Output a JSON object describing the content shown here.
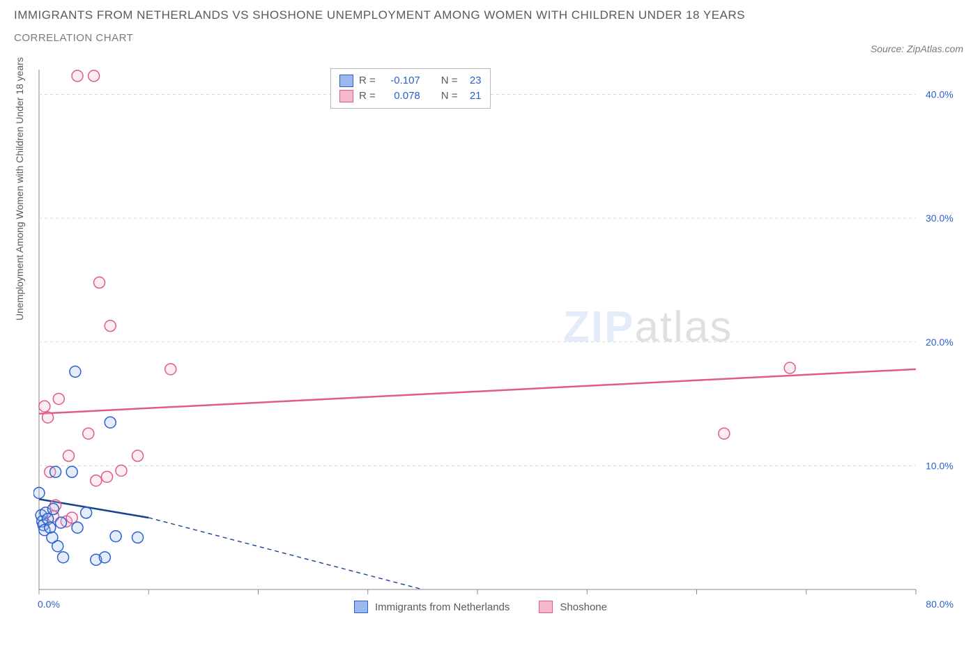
{
  "title": {
    "main": "IMMIGRANTS FROM NETHERLANDS VS SHOSHONE UNEMPLOYMENT AMONG WOMEN WITH CHILDREN UNDER 18 YEARS",
    "sub": "CORRELATION CHART",
    "main_color": "#5a5a5a",
    "sub_color": "#7a7a7a",
    "main_fontsize": 17,
    "sub_fontsize": 15
  },
  "source": {
    "prefix": "Source: ",
    "name": "ZipAtlas.com",
    "color": "#7a7a7a",
    "fontsize": 14
  },
  "watermark": {
    "zip": "ZIP",
    "atlas": "atlas",
    "zip_color": "#8aa9e6",
    "atlas_color": "#777777",
    "fontsize": 62,
    "opacity": 0.22
  },
  "chart": {
    "type": "scatter",
    "background_color": "#ffffff",
    "plot_border_color": "#8a8a8a",
    "grid_color": "#d9d9d9",
    "grid_dash": "4 4",
    "xlim": [
      0,
      80
    ],
    "ylim": [
      0,
      42
    ],
    "x_ticks": [
      0,
      10,
      20,
      30,
      40,
      50,
      60,
      70,
      80
    ],
    "x_tick_labels": [
      "0.0%",
      "",
      "",
      "",
      "",
      "",
      "",
      "",
      "80.0%"
    ],
    "y_ticks": [
      10,
      20,
      30,
      40
    ],
    "y_tick_labels": [
      "10.0%",
      "20.0%",
      "30.0%",
      "40.0%"
    ],
    "y_axis_label": "Unemployment Among Women with Children Under 18 years",
    "axis_label_color": "#5a5a5a",
    "tick_label_color": "#2a5fd0",
    "tick_label_fontsize": 14,
    "marker_radius": 8,
    "marker_stroke_width": 1.5,
    "marker_fill_opacity": 0.25,
    "trend_line_width": 2.5,
    "trend_dash_segment": "6 5"
  },
  "series": [
    {
      "name": "Immigrants from Netherlands",
      "color_stroke": "#2a5fd0",
      "color_fill": "#9db8ec",
      "trend_color": "#17418f",
      "trend": {
        "x1": 0,
        "y1": 7.3,
        "x2_solid": 10,
        "y2_solid": 5.8,
        "x2_dash": 35,
        "y2_dash": 0.0
      },
      "r": "-0.107",
      "n": "23",
      "points": [
        [
          0.0,
          7.8
        ],
        [
          0.2,
          6.0
        ],
        [
          0.3,
          5.5
        ],
        [
          0.4,
          5.2
        ],
        [
          0.5,
          4.8
        ],
        [
          0.6,
          6.2
        ],
        [
          0.8,
          5.7
        ],
        [
          1.0,
          5.0
        ],
        [
          1.2,
          4.2
        ],
        [
          1.3,
          6.5
        ],
        [
          1.5,
          9.5
        ],
        [
          1.7,
          3.5
        ],
        [
          2.0,
          5.4
        ],
        [
          2.2,
          2.6
        ],
        [
          3.0,
          9.5
        ],
        [
          3.3,
          17.6
        ],
        [
          3.5,
          5.0
        ],
        [
          4.3,
          6.2
        ],
        [
          5.2,
          2.4
        ],
        [
          6.0,
          2.6
        ],
        [
          6.5,
          13.5
        ],
        [
          7.0,
          4.3
        ],
        [
          9.0,
          4.2
        ]
      ]
    },
    {
      "name": "Shoshone",
      "color_stroke": "#e05a8b",
      "color_fill": "#f4b9cf",
      "trend_color": "#e05a8b",
      "trend": {
        "x1": 0,
        "y1": 14.2,
        "x2_solid": 80,
        "y2_solid": 17.8,
        "x2_dash": 80,
        "y2_dash": 17.8
      },
      "r": "0.078",
      "n": "21",
      "points": [
        [
          0.5,
          14.8
        ],
        [
          0.8,
          13.9
        ],
        [
          1.0,
          9.5
        ],
        [
          1.3,
          5.9
        ],
        [
          1.5,
          6.8
        ],
        [
          1.8,
          15.4
        ],
        [
          2.5,
          5.5
        ],
        [
          2.7,
          10.8
        ],
        [
          3.0,
          5.8
        ],
        [
          3.5,
          41.5
        ],
        [
          4.5,
          12.6
        ],
        [
          5.0,
          41.5
        ],
        [
          5.2,
          8.8
        ],
        [
          5.5,
          24.8
        ],
        [
          6.2,
          9.1
        ],
        [
          6.5,
          21.3
        ],
        [
          7.5,
          9.6
        ],
        [
          9.0,
          10.8
        ],
        [
          12.0,
          17.8
        ],
        [
          62.5,
          12.6
        ],
        [
          68.5,
          17.9
        ]
      ]
    }
  ],
  "corr_box": {
    "r_label": "R =",
    "n_label": "N =",
    "border_color": "#b9b9b9",
    "label_color": "#5a5a5a",
    "value_color": "#2a5fd0",
    "fontsize": 15
  },
  "bottom_legend": {
    "items": [
      {
        "label": "Immigrants from Netherlands",
        "fill": "#9db8ec",
        "stroke": "#2a5fd0"
      },
      {
        "label": "Shoshone",
        "fill": "#f4b9cf",
        "stroke": "#e05a8b"
      }
    ],
    "label_color": "#5a5a5a",
    "fontsize": 15
  }
}
